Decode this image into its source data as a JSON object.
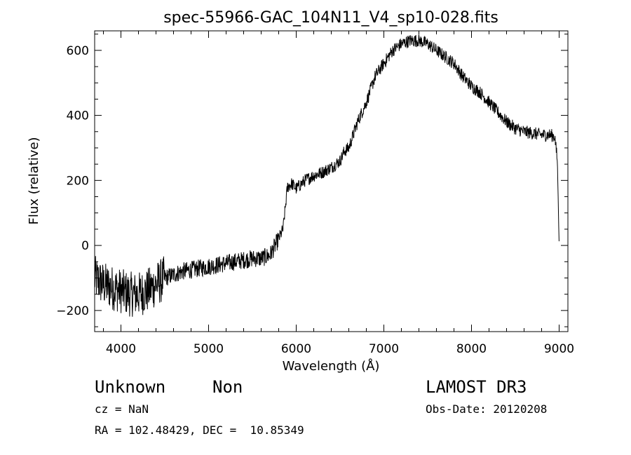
{
  "chart_data": {
    "type": "line",
    "title": "spec-55966-GAC_104N11_V4_sp10-028.fits",
    "xlabel": "Wavelength (Å)",
    "ylabel": "Flux (relative)",
    "xlim": [
      3700,
      9100
    ],
    "ylim": [
      -265,
      660
    ],
    "xticks": [
      4000,
      5000,
      6000,
      7000,
      8000,
      9000
    ],
    "yticks": [
      -200,
      0,
      200,
      400,
      600
    ],
    "grid": false,
    "series": [
      {
        "x": [
          3700,
          3800,
          3900,
          4000,
          4100,
          4200,
          4300,
          4400,
          4500,
          4600,
          4700,
          4800,
          4900,
          5000,
          5100,
          5200,
          5300,
          5400,
          5500,
          5600,
          5700,
          5800,
          5850,
          5900,
          5950,
          6000,
          6100,
          6200,
          6300,
          6400,
          6500,
          6550,
          6600,
          6650,
          6700,
          6800,
          6900,
          7000,
          7100,
          7200,
          7300,
          7400,
          7500,
          7600,
          7700,
          7800,
          7900,
          8000,
          8100,
          8200,
          8300,
          8400,
          8500,
          8600,
          8700,
          8800,
          8900,
          8950,
          8980,
          9000
        ],
        "y": [
          -100,
          -120,
          -130,
          -140,
          -150,
          -150,
          -140,
          -120,
          -100,
          -90,
          -80,
          -75,
          -70,
          -65,
          -60,
          -55,
          -50,
          -45,
          -40,
          -40,
          -30,
          20,
          50,
          180,
          190,
          175,
          200,
          215,
          225,
          240,
          260,
          290,
          300,
          340,
          380,
          440,
          520,
          560,
          600,
          620,
          630,
          630,
          620,
          600,
          580,
          560,
          520,
          490,
          470,
          440,
          410,
          380,
          360,
          350,
          345,
          340,
          340,
          335,
          260,
          0
        ]
      }
    ]
  },
  "footer": {
    "object_class": "Unknown",
    "subclass": "Non",
    "survey": "LAMOST DR3",
    "cz": "cz = NaN",
    "obs_date": "Obs-Date: 20120208",
    "coords": "RA = 102.48429, DEC =  10.85349"
  }
}
